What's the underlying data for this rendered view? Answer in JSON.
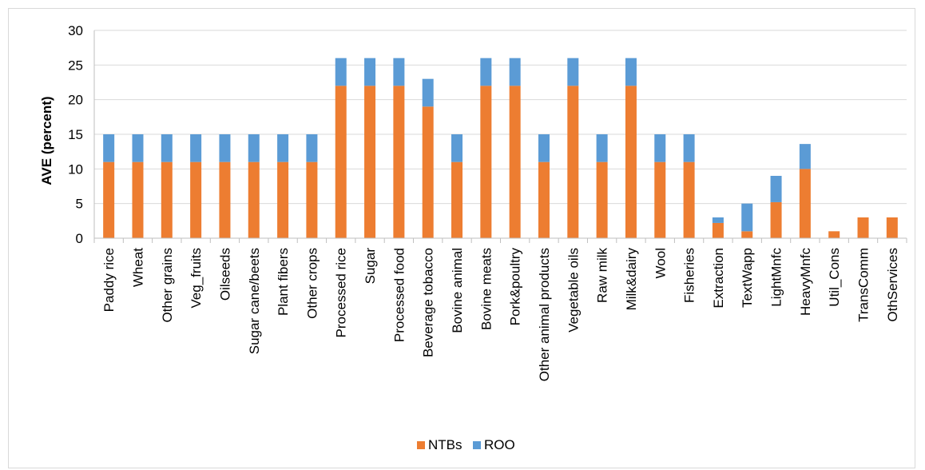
{
  "chart_data": {
    "type": "bar",
    "stacked": true,
    "ylabel": "AVE (percent)",
    "xlabel": "",
    "ylim": [
      0,
      30
    ],
    "yticks": [
      0,
      5,
      10,
      15,
      20,
      25,
      30
    ],
    "grid": true,
    "legend_position": "bottom",
    "categories": [
      "Paddy rice",
      "Wheat",
      "Other grains",
      "Veg_fruits",
      "Oilseeds",
      "Sugar cane/beets",
      "Plant fibers",
      "Other crops",
      "Processed rice",
      "Sugar",
      "Processed food",
      "Beverage tobacco",
      "Bovine animal",
      "Bovine meats",
      "Pork&poultry",
      "Other animal products",
      "Vegetable oils",
      "Raw milk",
      "Milk&dairy",
      "Wool",
      "Fisheries",
      "Extraction",
      "TextWapp",
      "LightMnfc",
      "HeavyMnfc",
      "Util_Cons",
      "TransComm",
      "OthServices"
    ],
    "series": [
      {
        "name": "NTBs",
        "color": "#ed7d31",
        "values": [
          11,
          11,
          11,
          11,
          11,
          11,
          11,
          11,
          22,
          22,
          22,
          19,
          11,
          22,
          22,
          11,
          22,
          11,
          22,
          11,
          11,
          2.2,
          1,
          5.2,
          10,
          1,
          3,
          3
        ]
      },
      {
        "name": "ROO",
        "color": "#5b9bd5",
        "values": [
          4,
          4,
          4,
          4,
          4,
          4,
          4,
          4,
          4,
          4,
          4,
          4,
          4,
          4,
          4,
          4,
          4,
          4,
          4,
          4,
          4,
          0.8,
          4,
          3.8,
          3.6,
          0,
          0,
          0
        ]
      }
    ]
  }
}
